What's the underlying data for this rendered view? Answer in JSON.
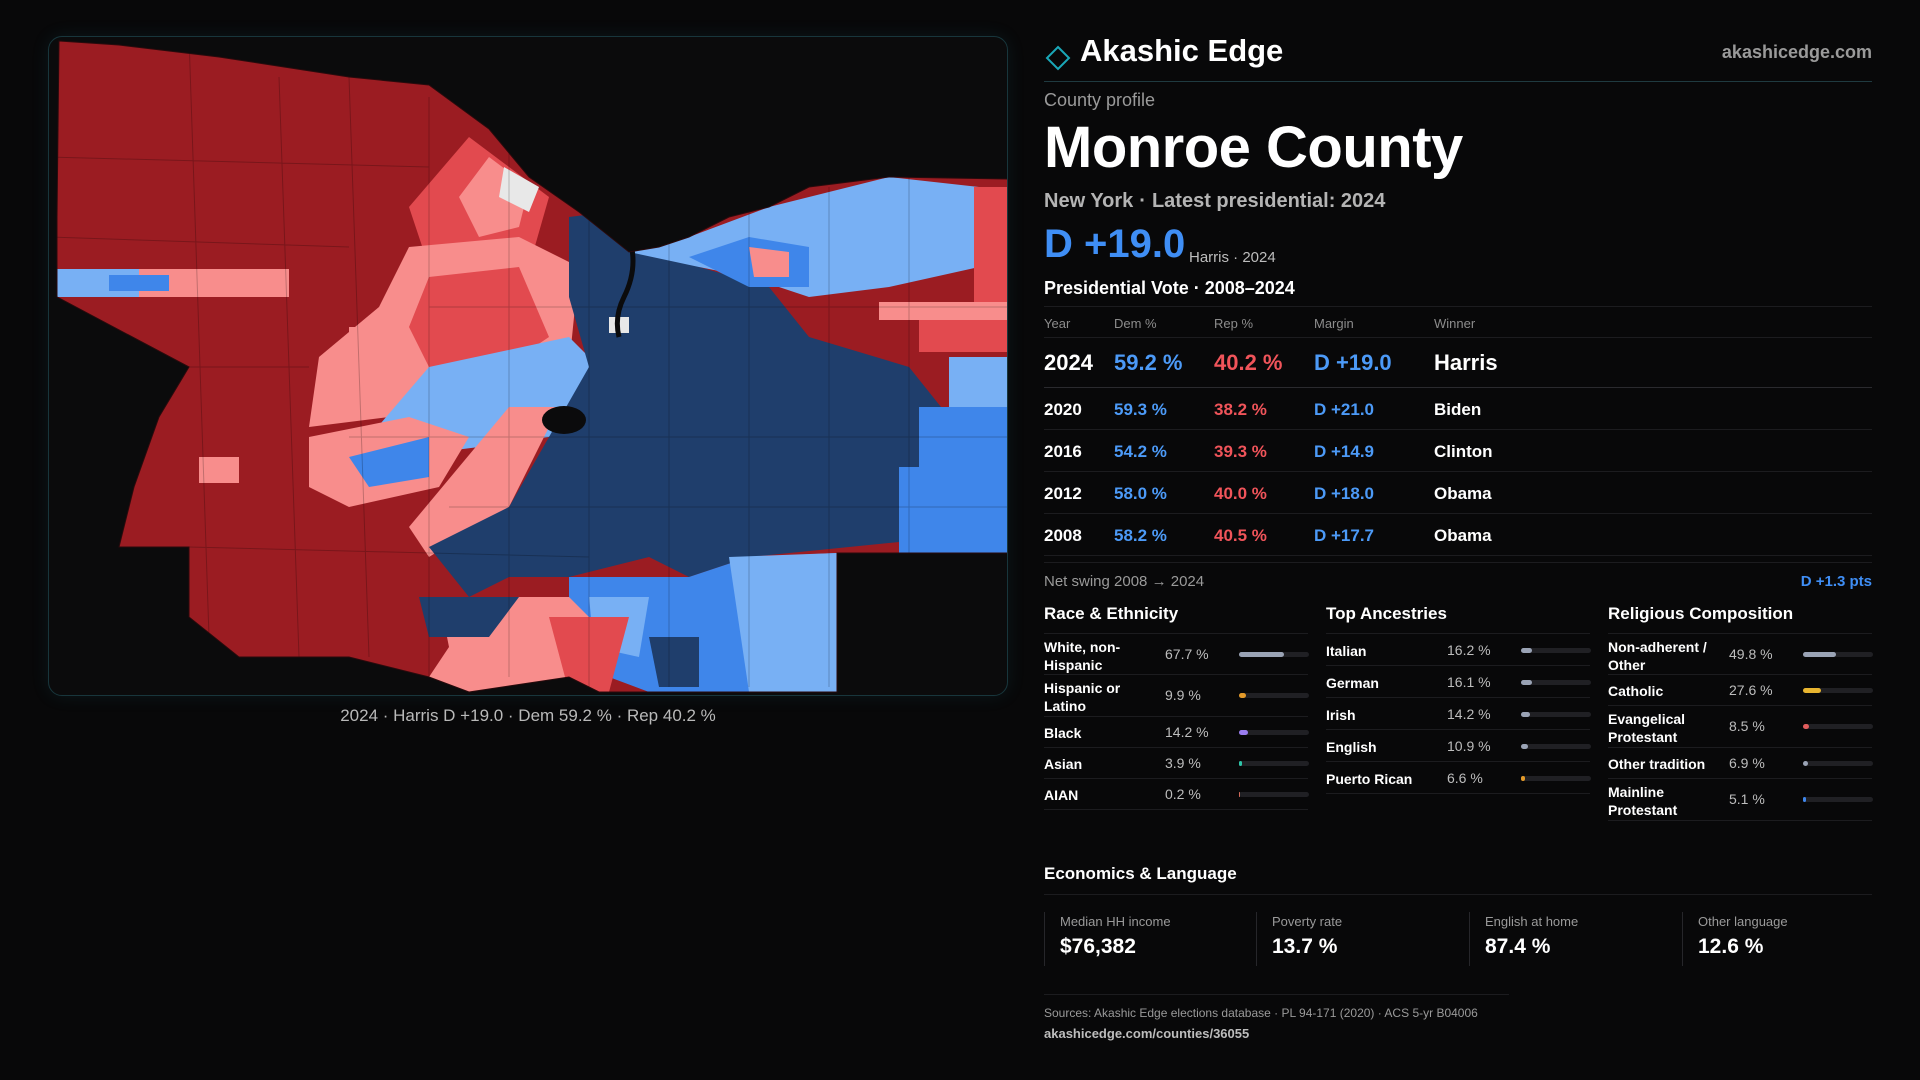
{
  "brand": {
    "name": "Akashic Edge",
    "url": "akashicedge.com"
  },
  "map": {
    "caption": "2024 · Harris D +19.0 · Dem 59.2 % · Rep 40.2 %",
    "legend_colors": {
      "safe_rep": "#9b1c22",
      "likely_rep": "#e24a4f",
      "lean_rep": "#f88d8c",
      "tossup": "#e8e8e8",
      "lean_dem": "#78b0f4",
      "likely_dem": "#3f86ea",
      "safe_dem": "#1f3e6c"
    }
  },
  "county": {
    "eyebrow": "County profile",
    "name": "Monroe County",
    "state": "New York",
    "latest": "Latest presidential: 2024",
    "margin": "D +19.0",
    "margin_note": "Harris · 2024"
  },
  "votes": {
    "title": "Presidential Vote · 2008–2024",
    "headers": {
      "year": "Year",
      "dem": "Dem %",
      "rep": "Rep %",
      "margin": "Margin",
      "winner": "Winner"
    },
    "rows": [
      {
        "year": "2024",
        "dem": "59.2 %",
        "rep": "40.2 %",
        "margin": "D +19.0",
        "winner": "Harris"
      },
      {
        "year": "2020",
        "dem": "59.3 %",
        "rep": "38.2 %",
        "margin": "D +21.0",
        "winner": "Biden"
      },
      {
        "year": "2016",
        "dem": "54.2 %",
        "rep": "39.3 %",
        "margin": "D +14.9",
        "winner": "Clinton"
      },
      {
        "year": "2012",
        "dem": "58.0 %",
        "rep": "40.0 %",
        "margin": "D +18.0",
        "winner": "Obama"
      },
      {
        "year": "2008",
        "dem": "58.2 %",
        "rep": "40.5 %",
        "margin": "D +17.7",
        "winner": "Obama"
      }
    ],
    "swing_label": "Net swing 2008 → 2024",
    "swing_value": "D +1.3 pts"
  },
  "race": {
    "title": "Race & Ethnicity",
    "items": [
      {
        "label": "White, non-Hispanic",
        "pct": "67.7 %",
        "value": 67.7,
        "color": "#9aa3b5"
      },
      {
        "label": "Hispanic or Latino",
        "pct": "9.9 %",
        "value": 9.9,
        "color": "#e39a2a"
      },
      {
        "label": "Black",
        "pct": "14.2 %",
        "value": 14.2,
        "color": "#9a7df0"
      },
      {
        "label": "Asian",
        "pct": "3.9 %",
        "value": 3.9,
        "color": "#2ec4a8"
      },
      {
        "label": "AIAN",
        "pct": "0.2 %",
        "value": 0.2,
        "color": "#d06a5a"
      }
    ]
  },
  "ancestry": {
    "title": "Top Ancestries",
    "items": [
      {
        "label": "Italian",
        "pct": "16.2 %",
        "value": 16.2,
        "color": "#9aa3b5"
      },
      {
        "label": "German",
        "pct": "16.1 %",
        "value": 16.1,
        "color": "#9aa3b5"
      },
      {
        "label": "Irish",
        "pct": "14.2 %",
        "value": 14.2,
        "color": "#9aa3b5"
      },
      {
        "label": "English",
        "pct": "10.9 %",
        "value": 10.9,
        "color": "#9aa3b5"
      },
      {
        "label": "Puerto Rican",
        "pct": "6.6 %",
        "value": 6.6,
        "color": "#e39a2a"
      }
    ]
  },
  "religion": {
    "title": "Religious Composition",
    "items": [
      {
        "label": "Non-adherent / Other",
        "pct": "49.8 %",
        "value": 49.8,
        "color": "#9aa3b5"
      },
      {
        "label": "Catholic",
        "pct": "27.6 %",
        "value": 27.6,
        "color": "#e8b530"
      },
      {
        "label": "Evangelical Protestant",
        "pct": "8.5 %",
        "value": 8.5,
        "color": "#e05c5c"
      },
      {
        "label": "Other tradition",
        "pct": "6.9 %",
        "value": 6.9,
        "color": "#9aa3b5"
      },
      {
        "label": "Mainline Protestant",
        "pct": "5.1 %",
        "value": 5.1,
        "color": "#3f86ea"
      }
    ]
  },
  "economics": {
    "title": "Economics & Language",
    "items": [
      {
        "label": "Median HH income",
        "value": "$76,382"
      },
      {
        "label": "Poverty rate",
        "value": "13.7 %"
      },
      {
        "label": "English at home",
        "value": "87.4 %"
      },
      {
        "label": "Other language",
        "value": "12.6 %"
      }
    ]
  },
  "footer": {
    "sources": "Sources: Akashic Edge elections database · PL 94-171 (2020) · ACS 5-yr B04006",
    "permalink": "akashicedge.com/counties/36055"
  }
}
